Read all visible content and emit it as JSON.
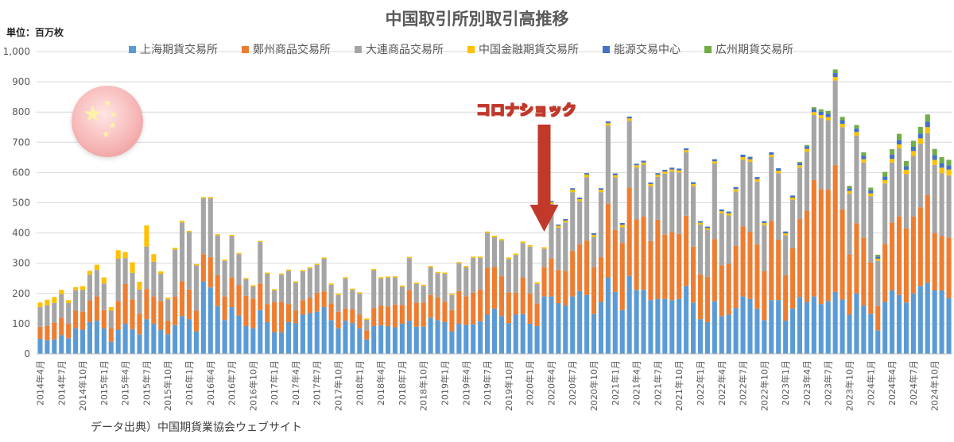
{
  "title": "中国取引所別取引高推移",
  "unit_label": "単位：百万枚",
  "source": "データ出典）中国期貨業協会ウェブサイト",
  "annotation": "コロナショック",
  "flag": {
    "stars": [
      "★",
      "★",
      "★",
      "★",
      "★"
    ]
  },
  "colors": {
    "shanghai": "#5b9bd5",
    "zhengzhou": "#ed7d31",
    "dalian": "#a5a5a5",
    "cffex": "#ffc000",
    "ine": "#4472c4",
    "gfex": "#70ad47",
    "arrow": "#c0392b"
  },
  "chart_data": {
    "type": "bar",
    "stacked": true,
    "title": "中国取引所別取引高推移",
    "ylabel": "単位：百万枚",
    "ylim": [
      0,
      1000
    ],
    "yticks": [
      "0",
      "100",
      "200",
      "300",
      "400",
      "500",
      "600",
      "700",
      "800",
      "900",
      "1,000"
    ],
    "start_month": "2014-04",
    "grid": true,
    "legend_position": "top",
    "x_tick_labels": [
      "2014年4月",
      "2014年7月",
      "2014年10月",
      "2015年1月",
      "2015年4月",
      "2015年7月",
      "2015年10月",
      "2016年1月",
      "2016年4月",
      "2016年7月",
      "2016年10月",
      "2017年1月",
      "2017年4月",
      "2017年7月",
      "2017年10月",
      "2018年1月",
      "2018年4月",
      "2018年7月",
      "2018年10月",
      "2019年1月",
      "2019年4月",
      "2019年7月",
      "2019年10月",
      "2020年1月",
      "2020年4月",
      "2020年7月",
      "2020年10月",
      "2021年1月",
      "2021年4月",
      "2021年7月",
      "2021年10月",
      "2022年1月",
      "2022年4月",
      "2022年7月",
      "2022年10月",
      "2023年1月",
      "2023年4月",
      "2023年7月",
      "2023年10月",
      "2024年1月",
      "2024年4月",
      "2024年7月",
      "2024年10月"
    ],
    "annotation_month_index": 71,
    "series": [
      {
        "name": "上海期貨交易所",
        "key": "shanghai",
        "values": [
          50,
          45,
          48,
          62,
          52,
          85,
          80,
          105,
          110,
          85,
          40,
          80,
          100,
          82,
          65,
          115,
          100,
          80,
          65,
          95,
          125,
          115,
          75,
          240,
          220,
          158,
          112,
          155,
          127,
          92,
          85,
          145,
          105,
          72,
          72,
          105,
          102,
          130,
          135,
          140,
          155,
          112,
          85,
          110,
          102,
          85,
          48,
          92,
          95,
          92,
          88,
          100,
          110,
          90,
          90,
          120,
          112,
          105,
          75,
          100,
          96,
          98,
          108,
          130,
          150,
          125,
          102,
          130,
          132,
          100,
          92,
          190,
          190,
          168,
          160,
          190,
          208,
          195,
          132,
          172,
          252,
          205,
          145,
          258,
          212,
          212,
          178,
          182,
          182,
          178,
          182,
          225,
          170,
          115,
          105,
          175,
          125,
          130,
          152,
          190,
          182,
          150,
          112,
          178,
          178,
          110,
          150,
          188,
          172,
          190,
          165,
          175,
          205,
          180,
          130,
          200,
          160,
          132,
          78,
          172,
          210,
          195,
          170,
          200,
          225,
          235,
          210,
          210,
          185
        ]
      },
      {
        "name": "鄭州商品交易所",
        "key": "zhengzhou",
        "values": [
          40,
          48,
          55,
          58,
          48,
          58,
          60,
          72,
          80,
          60,
          45,
          95,
          132,
          98,
          68,
          100,
          90,
          95,
          45,
          95,
          115,
          98,
          68,
          90,
          100,
          102,
          78,
          98,
          100,
          100,
          98,
          88,
          60,
          100,
          100,
          60,
          42,
          48,
          50,
          62,
          52,
          55,
          55,
          40,
          45,
          45,
          30,
          60,
          65,
          65,
          75,
          62,
          102,
          80,
          80,
          75,
          75,
          68,
          70,
          108,
          95,
          105,
          105,
          155,
          138,
          132,
          102,
          72,
          120,
          100,
          75,
          98,
          126,
          110,
          115,
          150,
          155,
          180,
          155,
          148,
          245,
          205,
          222,
          292,
          233,
          242,
          195,
          262,
          212,
          225,
          215,
          232,
          185,
          148,
          150,
          205,
          168,
          168,
          205,
          232,
          222,
          212,
          162,
          262,
          200,
          150,
          200,
          258,
          302,
          385,
          380,
          368,
          420,
          298,
          200,
          232,
          225,
          170,
          80,
          192,
          225,
          260,
          245,
          255,
          260,
          290,
          190,
          180,
          200
        ]
      },
      {
        "name": "大連商品交易所",
        "key": "dalian",
        "values": [
          65,
          68,
          65,
          78,
          68,
          68,
          72,
          85,
          88,
          88,
          58,
          140,
          85,
          88,
          80,
          140,
          115,
          90,
          70,
          155,
          195,
          190,
          150,
          185,
          195,
          132,
          118,
          137,
          103,
          55,
          40,
          137,
          100,
          38,
          90,
          110,
          92,
          95,
          98,
          92,
          108,
          62,
          55,
          100,
          65,
          70,
          35,
          125,
          90,
          95,
          90,
          60,
          105,
          62,
          55,
          92,
          80,
          92,
          50,
          92,
          96,
          115,
          105,
          115,
          98,
          118,
          110,
          125,
          115,
          155,
          65,
          60,
          180,
          140,
          160,
          195,
          142,
          210,
          100,
          215,
          258,
          174,
          52,
          221,
          172,
          172,
          182,
          142,
          202,
          200,
          203,
          210,
          200,
          165,
          155,
          250,
          172,
          160,
          180,
          220,
          232,
          208,
          152,
          211,
          220,
          132,
          160,
          170,
          195,
          215,
          235,
          230,
          279,
          272,
          200,
          290,
          248,
          220,
          150,
          200,
          198,
          225,
          180,
          200,
          210,
          205,
          225,
          208,
          205
        ]
      },
      {
        "name": "中国金融期貨交易所",
        "key": "cffex",
        "values": [
          15,
          18,
          20,
          14,
          10,
          10,
          12,
          13,
          17,
          20,
          12,
          28,
          20,
          35,
          26,
          70,
          25,
          8,
          6,
          6,
          5,
          4,
          4,
          4,
          4,
          4,
          4,
          4,
          4,
          4,
          4,
          4,
          4,
          4,
          4,
          4,
          4,
          4,
          4,
          4,
          4,
          4,
          4,
          4,
          4,
          4,
          4,
          4,
          4,
          4,
          4,
          4,
          4,
          4,
          4,
          4,
          4,
          4,
          4,
          4,
          4,
          4,
          4,
          5,
          5,
          5,
          5,
          5,
          5,
          5,
          5,
          5,
          6,
          6,
          6,
          8,
          7,
          8,
          7,
          8,
          8,
          7,
          8,
          8,
          7,
          7,
          7,
          7,
          7,
          7,
          7,
          7,
          7,
          6,
          6,
          7,
          7,
          7,
          8,
          9,
          8,
          8,
          7,
          8,
          8,
          7,
          7,
          8,
          9,
          10,
          10,
          10,
          12,
          11,
          9,
          12,
          11,
          9,
          7,
          11,
          12,
          13,
          14,
          16,
          18,
          20,
          17,
          18,
          20
        ]
      },
      {
        "name": "能源交易中心",
        "key": "ine",
        "values": [
          0,
          0,
          0,
          0,
          0,
          0,
          0,
          0,
          0,
          0,
          0,
          0,
          0,
          0,
          0,
          0,
          0,
          0,
          0,
          0,
          0,
          0,
          0,
          0,
          0,
          0,
          0,
          0,
          0,
          0,
          0,
          0,
          0,
          0,
          0,
          0,
          0,
          0,
          0,
          0,
          0,
          0,
          0,
          0,
          0,
          0,
          0,
          0,
          0,
          0,
          0,
          0,
          0,
          0,
          0,
          0,
          0,
          0,
          0,
          0,
          0,
          0,
          0,
          0,
          0,
          0,
          0,
          0,
          0,
          0,
          0,
          0,
          4,
          4,
          5,
          5,
          5,
          5,
          5,
          5,
          6,
          6,
          6,
          6,
          5,
          6,
          5,
          5,
          6,
          6,
          6,
          6,
          6,
          5,
          5,
          7,
          6,
          6,
          7,
          8,
          8,
          7,
          6,
          8,
          8,
          6,
          7,
          8,
          9,
          10,
          11,
          12,
          13,
          12,
          9,
          12,
          12,
          10,
          7,
          12,
          14,
          15,
          12,
          14,
          16,
          18,
          16,
          15,
          14
        ]
      },
      {
        "name": "広州期貨交易所",
        "key": "gfex",
        "values": [
          0,
          0,
          0,
          0,
          0,
          0,
          0,
          0,
          0,
          0,
          0,
          0,
          0,
          0,
          0,
          0,
          0,
          0,
          0,
          0,
          0,
          0,
          0,
          0,
          0,
          0,
          0,
          0,
          0,
          0,
          0,
          0,
          0,
          0,
          0,
          0,
          0,
          0,
          0,
          0,
          0,
          0,
          0,
          0,
          0,
          0,
          0,
          0,
          0,
          0,
          0,
          0,
          0,
          0,
          0,
          0,
          0,
          0,
          0,
          0,
          0,
          0,
          0,
          0,
          0,
          0,
          0,
          0,
          0,
          0,
          0,
          0,
          0,
          0,
          0,
          0,
          0,
          0,
          0,
          0,
          0,
          0,
          0,
          0,
          0,
          0,
          0,
          0,
          0,
          0,
          0,
          0,
          0,
          0,
          0,
          0,
          0,
          0,
          0,
          0,
          0,
          0,
          0,
          0,
          0,
          0,
          0,
          3,
          4,
          6,
          8,
          9,
          12,
          11,
          8,
          11,
          11,
          9,
          6,
          15,
          18,
          20,
          17,
          20,
          22,
          24,
          20,
          20,
          18
        ]
      }
    ]
  }
}
